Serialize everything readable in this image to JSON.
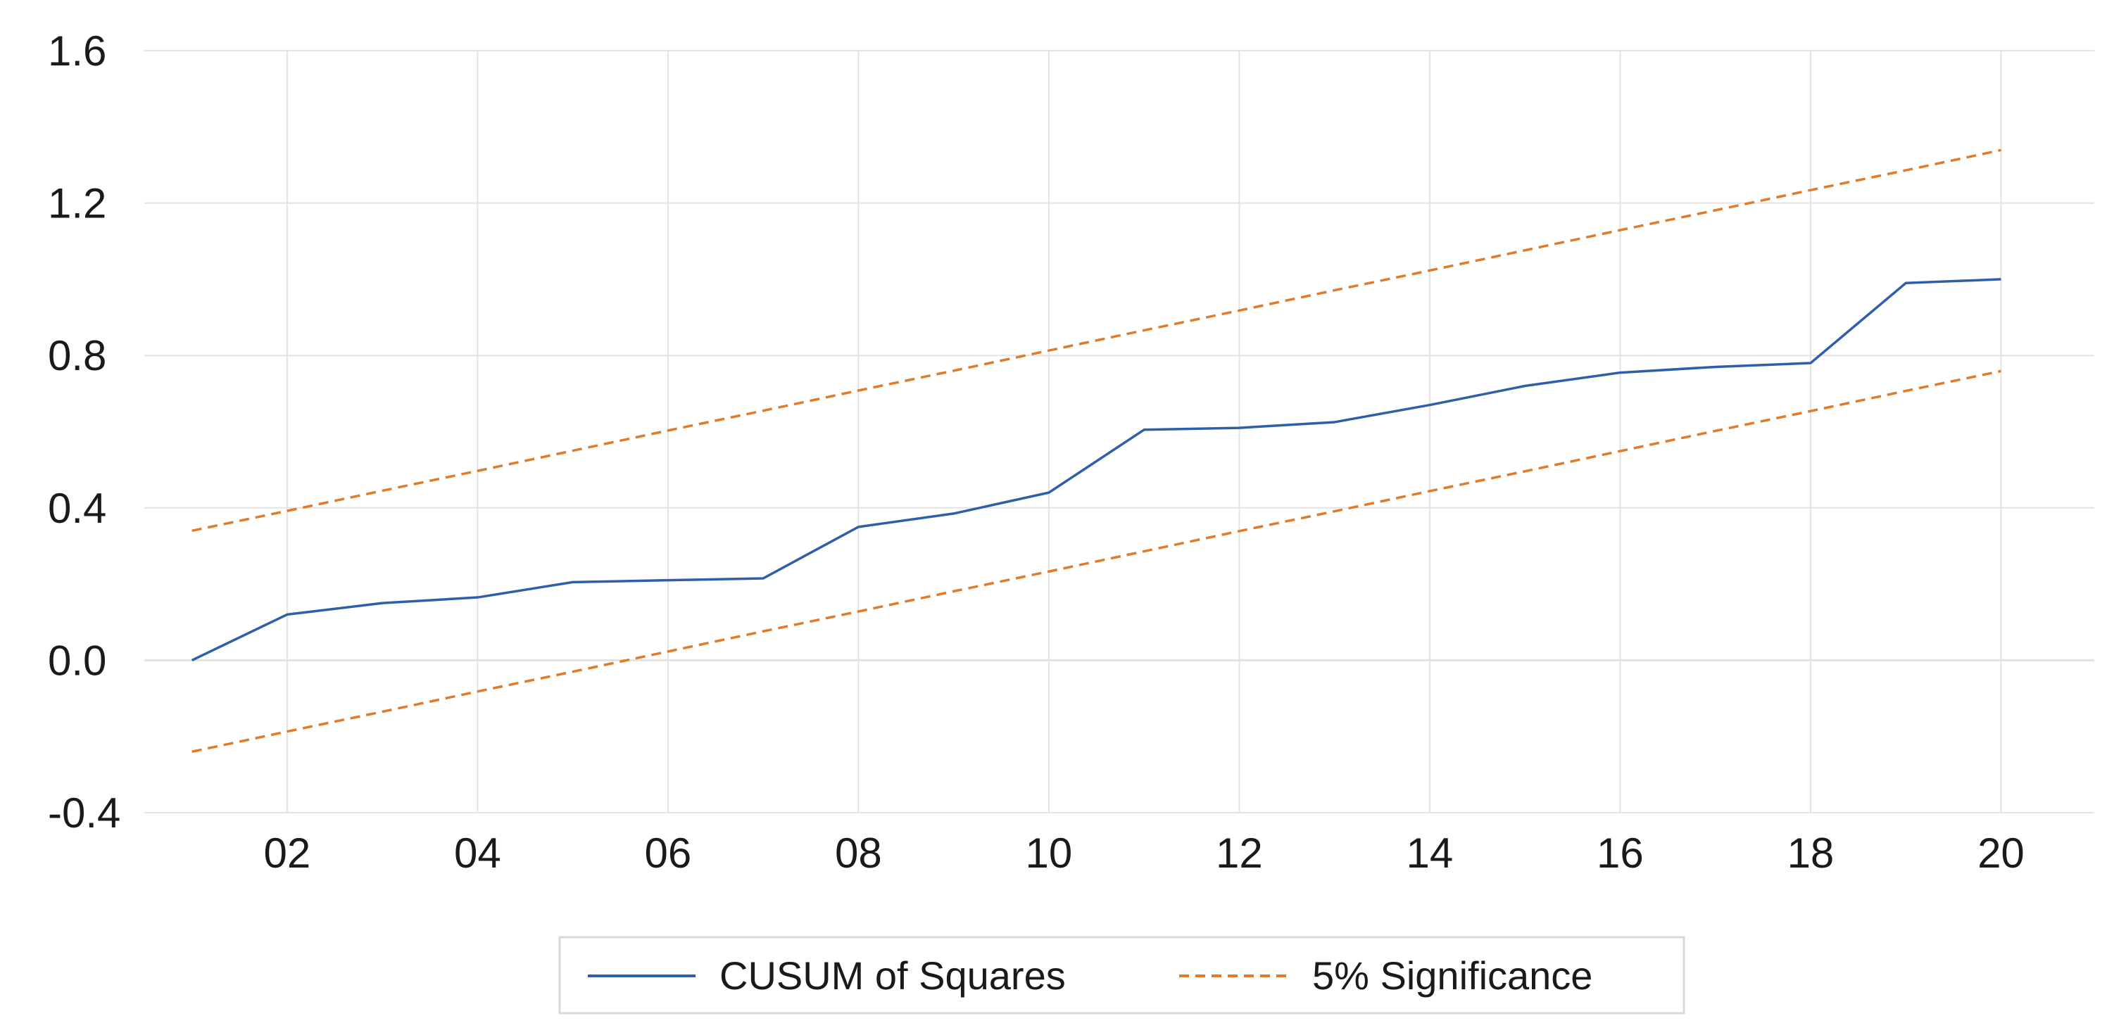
{
  "chart_data": {
    "type": "line",
    "title": "",
    "xlabel": "",
    "ylabel": "",
    "x": [
      2001,
      2002,
      2003,
      2004,
      2005,
      2006,
      2007,
      2008,
      2009,
      2010,
      2011,
      2012,
      2013,
      2014,
      2015,
      2016,
      2017,
      2018,
      2019,
      2020
    ],
    "x_ticks": [
      2002,
      2004,
      2006,
      2008,
      2010,
      2012,
      2014,
      2016,
      2018,
      2020
    ],
    "x_tick_labels": [
      "02",
      "04",
      "06",
      "08",
      "10",
      "12",
      "14",
      "16",
      "18",
      "20"
    ],
    "xlim": [
      2000.5,
      2020.98
    ],
    "ylim": [
      -0.4,
      1.6
    ],
    "y_ticks": [
      -0.4,
      0.0,
      0.4,
      0.8,
      1.2,
      1.6
    ],
    "y_tick_labels": [
      "-0.4",
      "0.0",
      "0.4",
      "0.8",
      "1.2",
      "1.6"
    ],
    "grid": true,
    "legend_position": "bottom-center",
    "series": [
      {
        "name": "CUSUM of Squares",
        "style": "solid",
        "color": "#2e5fa8",
        "values": [
          0.0,
          0.12,
          0.15,
          0.165,
          0.205,
          0.21,
          0.215,
          0.35,
          0.385,
          0.44,
          0.605,
          0.61,
          0.625,
          0.67,
          0.72,
          0.755,
          0.77,
          0.78,
          0.99,
          1.0
        ]
      },
      {
        "name": "5% Significance",
        "style": "dashed",
        "color": "#e07b2a",
        "values": [
          0.34,
          0.392,
          0.445,
          0.497,
          0.55,
          0.603,
          0.655,
          0.708,
          0.76,
          0.813,
          0.866,
          0.918,
          0.971,
          1.023,
          1.076,
          1.129,
          1.181,
          1.234,
          1.286,
          1.339
        ]
      },
      {
        "name": "5% Significance",
        "style": "dashed",
        "color": "#e07b2a",
        "values": [
          -0.24,
          -0.187,
          -0.135,
          -0.082,
          -0.03,
          0.023,
          0.076,
          0.128,
          0.181,
          0.233,
          0.286,
          0.339,
          0.391,
          0.444,
          0.496,
          0.549,
          0.602,
          0.654,
          0.707,
          0.759
        ]
      }
    ],
    "legend": {
      "items": [
        "CUSUM of Squares",
        "5% Significance"
      ]
    },
    "colors": {
      "grid": "#e3e3e3",
      "legend_border": "#d9d9d9",
      "text": "#1a1a1a"
    }
  }
}
